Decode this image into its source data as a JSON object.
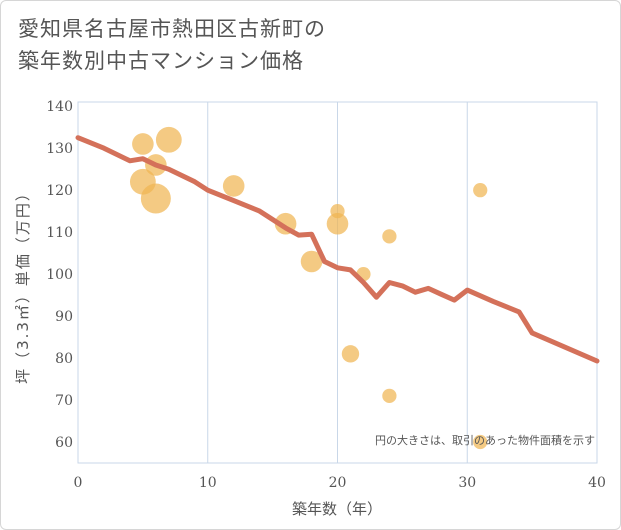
{
  "title_line1": "愛知県名古屋市熱田区古新町の",
  "title_line2": "築年数別中古マンション価格",
  "chart_data": {
    "type": "scatter",
    "xlabel": "築年数（年）",
    "ylabel": "坪（3.3㎡）単価（万円）",
    "xlim": [
      0,
      40
    ],
    "ylim": [
      55,
      141
    ],
    "xticks": [
      0,
      10,
      20,
      30,
      40
    ],
    "yticks": [
      60,
      70,
      80,
      90,
      100,
      110,
      120,
      130,
      140
    ],
    "grid": true,
    "note": "円の大きさは、取引のあった物件面積を示す",
    "colors": {
      "bubble": "#f0b553",
      "trend": "#d4715a",
      "grid": "#c9d7e8"
    },
    "points": [
      {
        "x": 5,
        "y": 131,
        "size": 0.6
      },
      {
        "x": 7,
        "y": 132,
        "size": 0.8
      },
      {
        "x": 6,
        "y": 126,
        "size": 0.6
      },
      {
        "x": 5,
        "y": 122,
        "size": 0.8
      },
      {
        "x": 6,
        "y": 118,
        "size": 1.0
      },
      {
        "x": 12,
        "y": 121,
        "size": 0.6
      },
      {
        "x": 16,
        "y": 112,
        "size": 0.6
      },
      {
        "x": 20,
        "y": 115,
        "size": 0.25
      },
      {
        "x": 20,
        "y": 112,
        "size": 0.6
      },
      {
        "x": 18,
        "y": 103,
        "size": 0.6
      },
      {
        "x": 22,
        "y": 100,
        "size": 0.25
      },
      {
        "x": 24,
        "y": 109,
        "size": 0.25
      },
      {
        "x": 21,
        "y": 81,
        "size": 0.4
      },
      {
        "x": 24,
        "y": 71,
        "size": 0.25
      },
      {
        "x": 31,
        "y": 120,
        "size": 0.25
      },
      {
        "x": 31,
        "y": 60,
        "size": 0.25
      }
    ],
    "trend": {
      "name": "",
      "x": [
        0,
        2,
        4,
        5,
        6,
        7,
        8,
        9,
        10,
        12,
        14,
        16,
        17,
        18,
        19,
        20,
        21,
        22,
        23,
        24,
        25,
        26,
        27,
        28,
        29,
        30,
        32,
        34,
        35,
        40
      ],
      "y": [
        132.5,
        130,
        127,
        127.5,
        126,
        125,
        123.5,
        122,
        120,
        117.5,
        115,
        111,
        109.3,
        109.5,
        103,
        101.5,
        101,
        98,
        94.5,
        98,
        97.2,
        95.7,
        96.6,
        95.2,
        93.8,
        96.2,
        93.5,
        91,
        86,
        79.3
      ]
    }
  }
}
